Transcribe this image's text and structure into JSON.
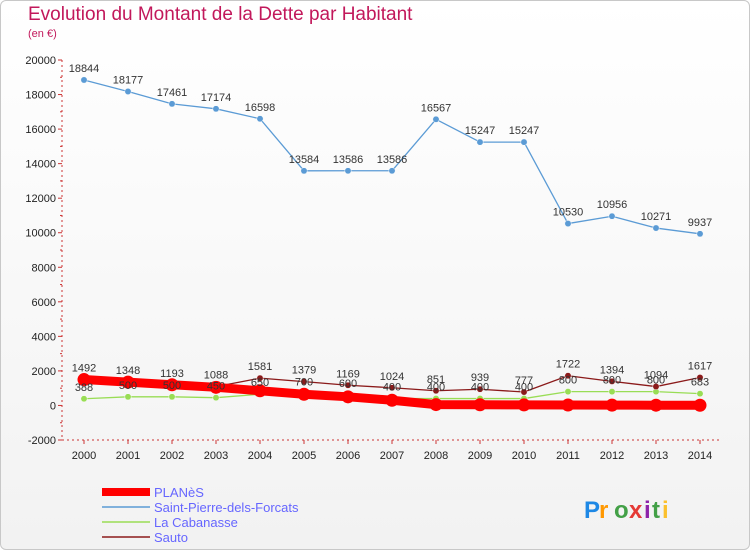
{
  "title": "Evolution du Montant de la Dette par Habitant",
  "subtitle": "(en €)",
  "brand": {
    "text": "Proxiti",
    "letters": [
      "P",
      "r",
      "o",
      "x",
      "i",
      "t",
      "i"
    ]
  },
  "chart_data": {
    "type": "line",
    "x": [
      "2000",
      "2001",
      "2002",
      "2003",
      "2004",
      "2005",
      "2006",
      "2007",
      "2008",
      "2009",
      "2010",
      "2011",
      "2012",
      "2013",
      "2014"
    ],
    "ylim": [
      -2000,
      20000
    ],
    "yticks": [
      -2000,
      0,
      2000,
      4000,
      6000,
      8000,
      10000,
      12000,
      14000,
      16000,
      18000,
      20000
    ],
    "grid": false,
    "legend_position": "bottom-left",
    "series": [
      {
        "name": "PLANèS",
        "color": "#ff0000",
        "values": [
          1500,
          1350,
          1200,
          1050,
          850,
          650,
          500,
          300,
          50,
          40,
          30,
          25,
          20,
          15,
          10
        ],
        "labels": false
      },
      {
        "name": "Saint-Pierre-dels-Forcats",
        "color": "#5b9bd5",
        "values": [
          18844,
          18177,
          17461,
          17174,
          16598,
          13584,
          13586,
          13586,
          16567,
          15247,
          15247,
          10530,
          10956,
          10271,
          9937
        ],
        "labels": true
      },
      {
        "name": "La Cabanasse",
        "color": "#99dd55",
        "values": [
          388,
          500,
          500,
          450,
          650,
          700,
          600,
          400,
          400,
          400,
          400,
          800,
          800,
          800,
          683
        ],
        "labels": true
      },
      {
        "name": "Sauto",
        "color": "#8b1a1a",
        "values": [
          1492,
          1348,
          1193,
          1088,
          1581,
          1379,
          1169,
          1024,
          851,
          939,
          777,
          1722,
          1394,
          1094,
          1617
        ],
        "labels": true
      }
    ]
  }
}
